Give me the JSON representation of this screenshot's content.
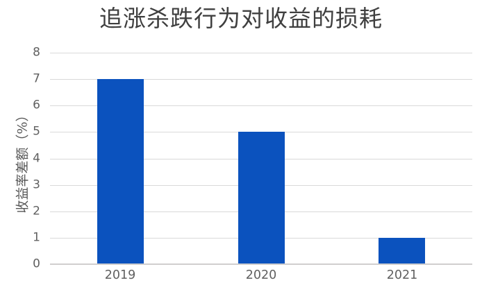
{
  "chart_data": {
    "type": "bar",
    "title": "追涨杀跌行为对收益的损耗",
    "categories": [
      "2019",
      "2020",
      "2021"
    ],
    "values": [
      7,
      5,
      1
    ],
    "xlabel": "",
    "ylabel": "收益率差额（%）",
    "ylim": [
      0,
      8
    ],
    "yticks": [
      0,
      1,
      2,
      3,
      4,
      5,
      6,
      7,
      8
    ],
    "grid": "horizontal-only",
    "legend": "none",
    "bar_width_ratio": 0.33
  },
  "colors": {
    "bar": "#0B52BE",
    "gridline": "#D9D9D9",
    "axis_line": "#D0CECE",
    "tick_label": "#606060",
    "title": "#3F3F3F",
    "y_axis_title": "#565656",
    "background": "#FFFFFF"
  }
}
